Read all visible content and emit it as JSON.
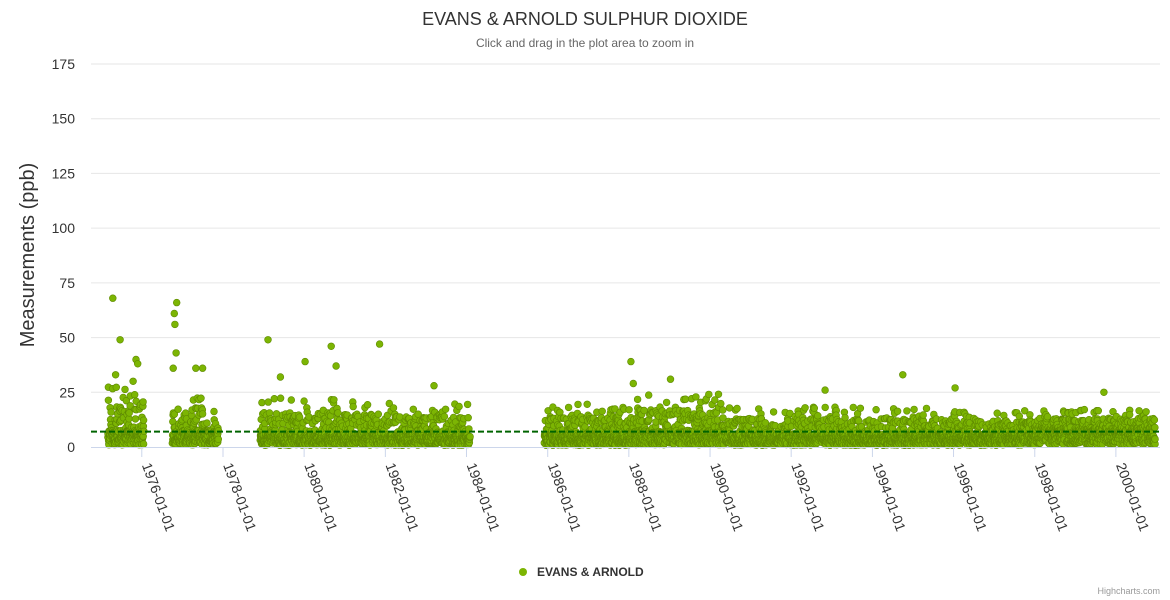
{
  "chart_data": {
    "type": "scatter",
    "title": "EVANS & ARNOLD SULPHUR DIOXIDE",
    "subtitle": "Click and drag in the plot area to zoom in",
    "ylabel": "Measurements (ppb)",
    "xlabel": "",
    "ylim": [
      0,
      175
    ],
    "yticks": [
      0,
      25,
      50,
      75,
      100,
      125,
      150,
      175
    ],
    "xlim": [
      "1974-10-01",
      "2001-02-01"
    ],
    "xticks": [
      "1976-01-01",
      "1978-01-01",
      "1980-01-01",
      "1982-01-01",
      "1984-01-01",
      "1986-01-01",
      "1988-01-01",
      "1990-01-01",
      "1992-01-01",
      "1994-01-01",
      "1996-01-01",
      "1998-01-01",
      "2000-01-01"
    ],
    "grid": true,
    "legend": "bottom-center",
    "reference_line": {
      "value": 7,
      "style": "dashed",
      "color": "#006400"
    },
    "series": [
      {
        "name": "EVANS & ARNOLD",
        "color": "#7cb503",
        "segments": [
          {
            "start": "1975-03-01",
            "end": "1976-01-20",
            "level": 5,
            "spread": 14
          },
          {
            "start": "1976-10-01",
            "end": "1977-11-20",
            "level": 5,
            "spread": 13
          },
          {
            "start": "1978-12-01",
            "end": "1980-11-10",
            "level": 4,
            "spread": 12
          },
          {
            "start": "1980-11-10",
            "end": "1981-12-01",
            "level": 4,
            "spread": 11
          },
          {
            "start": "1981-12-01",
            "end": "1984-02-01",
            "level": 4,
            "spread": 10
          },
          {
            "start": "1985-12-01",
            "end": "1988-01-01",
            "level": 4,
            "spread": 10
          },
          {
            "start": "1988-01-01",
            "end": "1990-06-01",
            "level": 5,
            "spread": 12
          },
          {
            "start": "1990-06-01",
            "end": "1995-06-01",
            "level": 4,
            "spread": 9
          },
          {
            "start": "1995-06-01",
            "end": "1998-01-01",
            "level": 4,
            "spread": 8
          },
          {
            "start": "1998-01-01",
            "end": "2000-12-20",
            "level": 6,
            "spread": 7
          }
        ],
        "notable_points": [
          {
            "x": "1975-04-15",
            "y": 68
          },
          {
            "x": "1975-06-20",
            "y": 49
          },
          {
            "x": "1975-05-10",
            "y": 33
          },
          {
            "x": "1975-11-10",
            "y": 40
          },
          {
            "x": "1975-11-25",
            "y": 38
          },
          {
            "x": "1975-10-15",
            "y": 30
          },
          {
            "x": "1976-10-20",
            "y": 61
          },
          {
            "x": "1976-10-25",
            "y": 56
          },
          {
            "x": "1976-11-10",
            "y": 66
          },
          {
            "x": "1976-11-05",
            "y": 43
          },
          {
            "x": "1976-10-10",
            "y": 36
          },
          {
            "x": "1977-05-01",
            "y": 36
          },
          {
            "x": "1977-07-01",
            "y": 36
          },
          {
            "x": "1979-02-10",
            "y": 49
          },
          {
            "x": "1979-06-01",
            "y": 32
          },
          {
            "x": "1980-01-10",
            "y": 39
          },
          {
            "x": "1980-09-01",
            "y": 46
          },
          {
            "x": "1980-10-15",
            "y": 37
          },
          {
            "x": "1981-11-10",
            "y": 47
          },
          {
            "x": "1983-03-15",
            "y": 28
          },
          {
            "x": "1988-01-20",
            "y": 39
          },
          {
            "x": "1988-02-10",
            "y": 29
          },
          {
            "x": "1989-01-10",
            "y": 31
          },
          {
            "x": "1992-11-01",
            "y": 26
          },
          {
            "x": "1994-10-01",
            "y": 33
          },
          {
            "x": "1996-01-15",
            "y": 27
          },
          {
            "x": "1999-09-15",
            "y": 25
          }
        ]
      }
    ]
  },
  "legend": {
    "label": "EVANS & ARNOLD"
  },
  "credits": "Highcharts.com"
}
